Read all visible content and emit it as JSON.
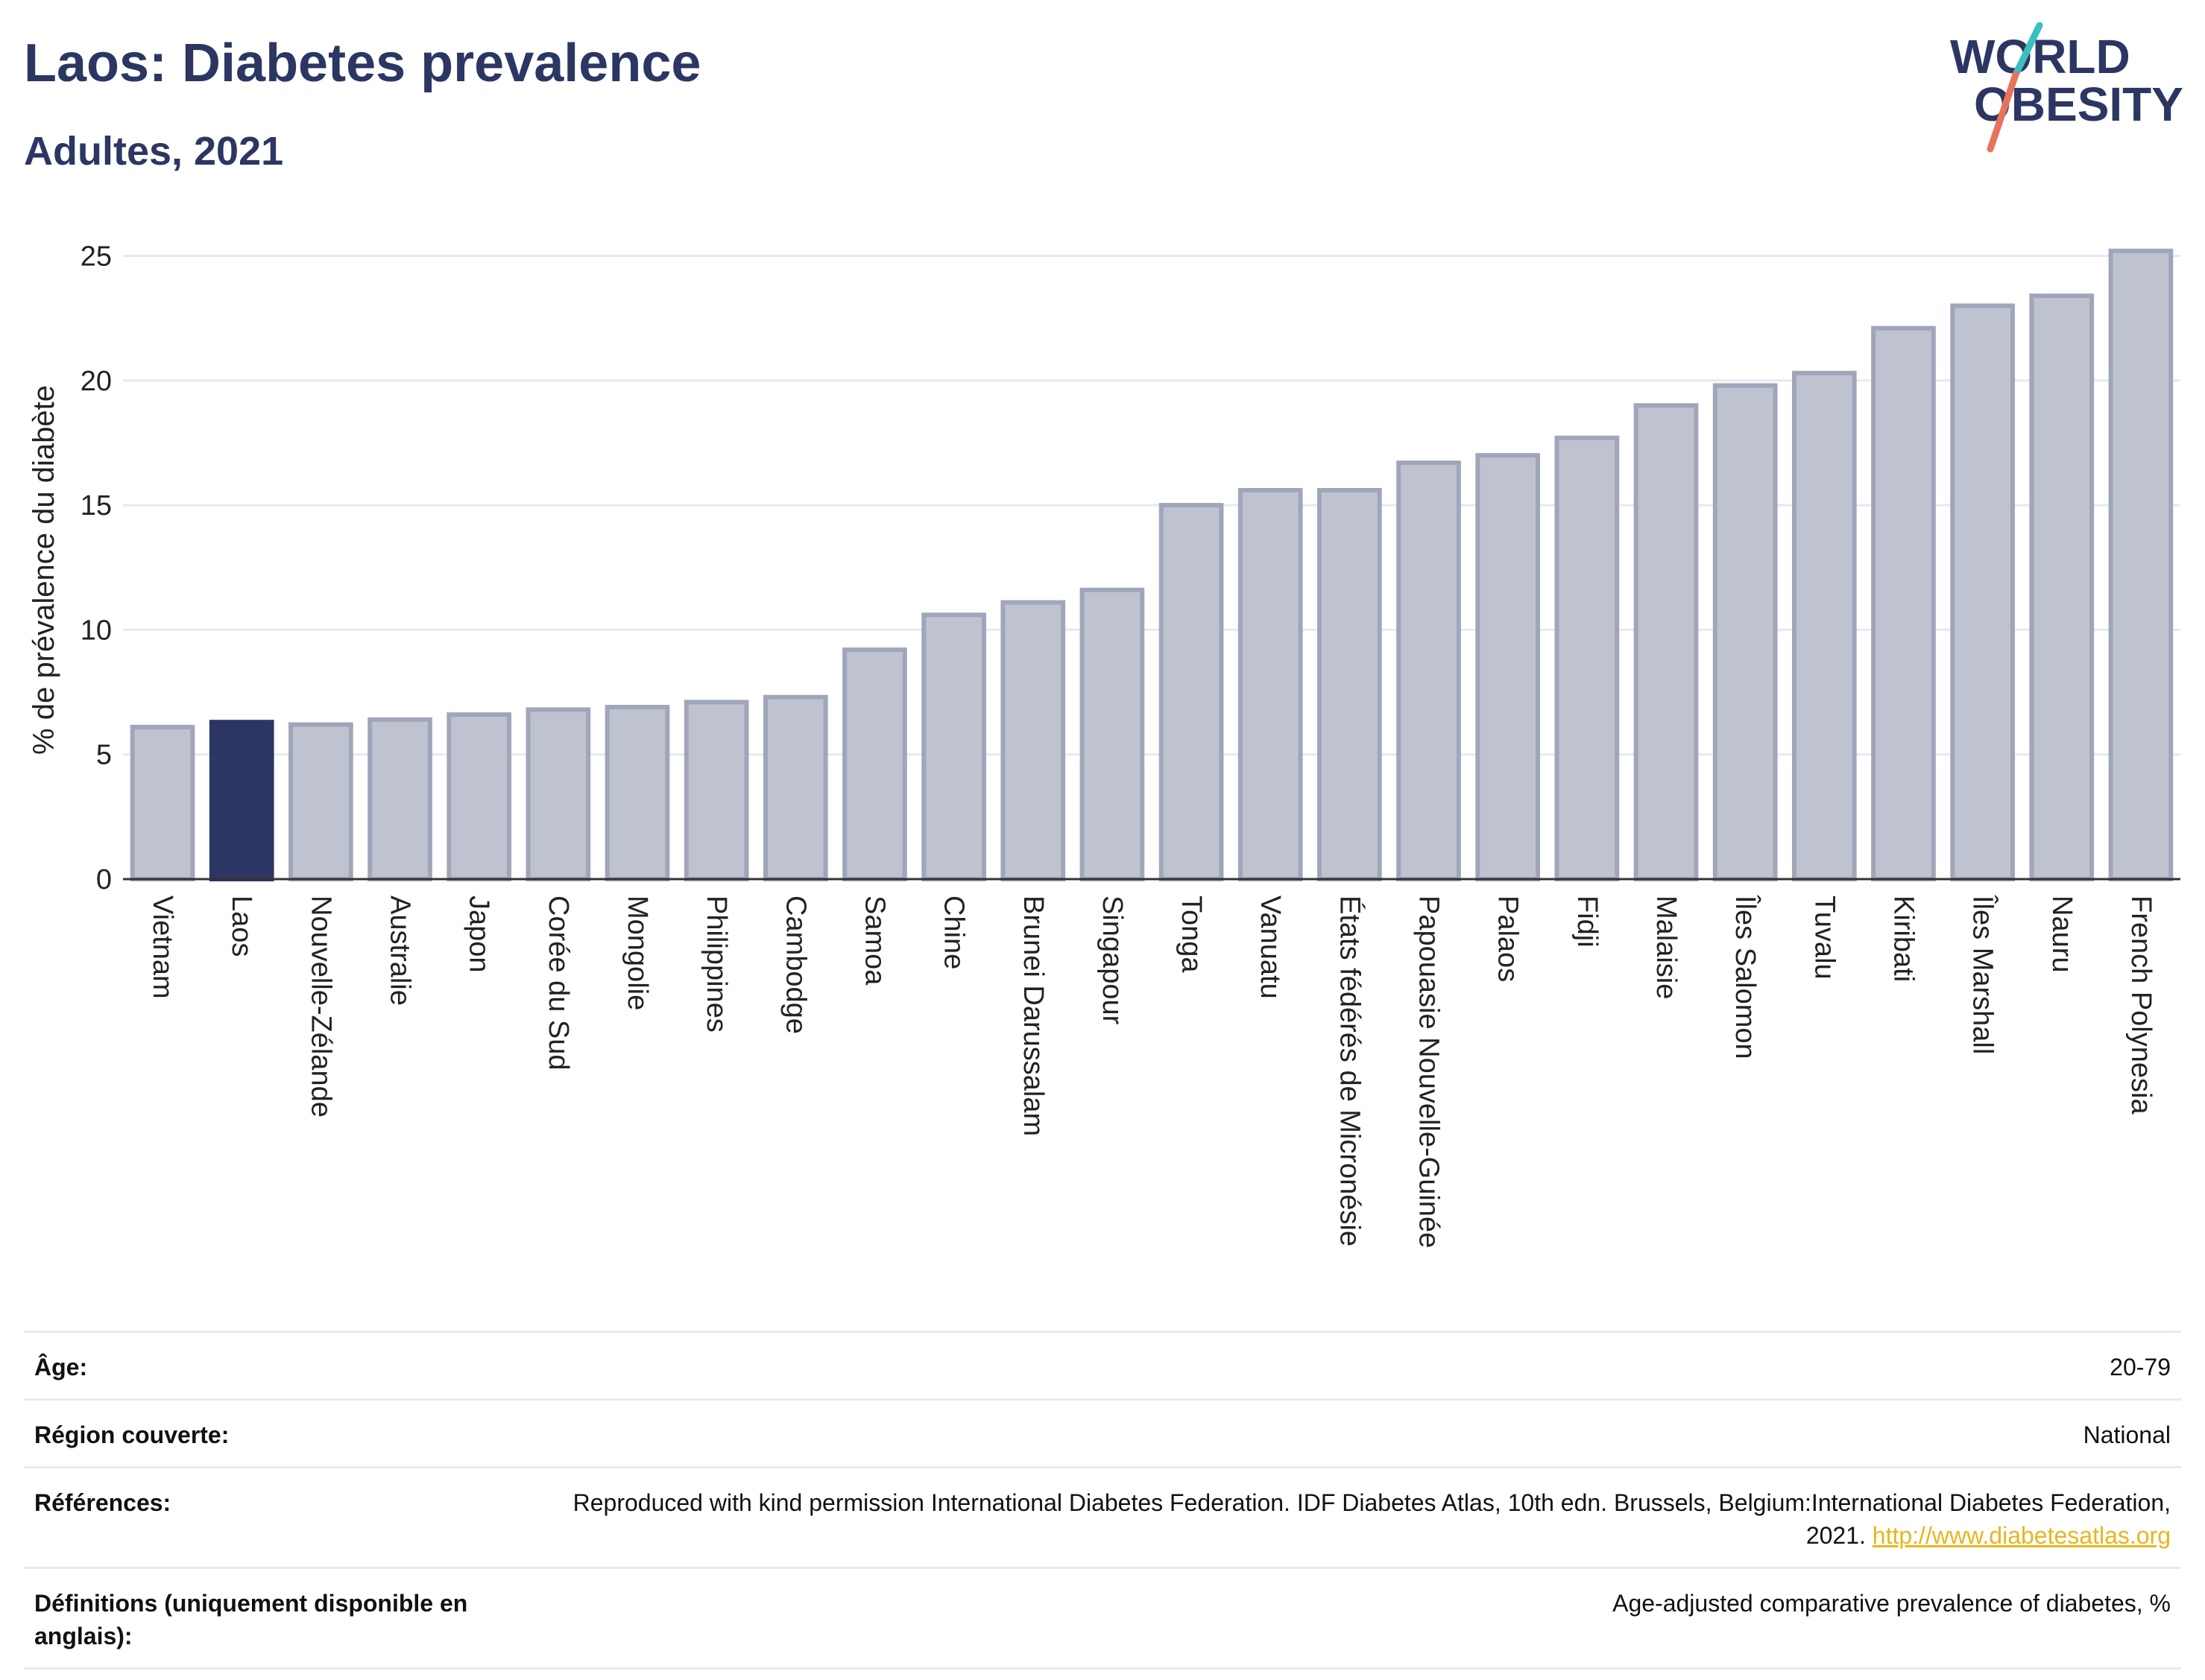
{
  "title": "Laos: Diabetes prevalence",
  "subtitle": "Adultes, 2021",
  "logo": {
    "line1": "WORLD",
    "line2": "OBESITY"
  },
  "colors": {
    "highlight": "#2c3663",
    "bar": "#bfc3d0",
    "bar_stroke": "#a0a6ba",
    "grid": "#e6e9ef",
    "text": "#2c3663",
    "link": "#e9b51e",
    "logo_teal": "#3bbfbf",
    "logo_coral": "#e8735c"
  },
  "chart_data": {
    "type": "bar",
    "ylabel": "% de prévalence du diabète",
    "ylim": [
      0,
      26
    ],
    "yticks": [
      0,
      5,
      10,
      15,
      20,
      25
    ],
    "grid": true,
    "highlight": "Laos",
    "categories": [
      "Vietnam",
      "Laos",
      "Nouvelle-Zélande",
      "Australie",
      "Japon",
      "Corée du Sud",
      "Mongolie",
      "Philippines",
      "Cambodge",
      "Samoa",
      "Chine",
      "Brunei Darussalam",
      "Singapour",
      "Tonga",
      "Vanuatu",
      "États fédérés de Micronésie",
      "Papouasie Nouvelle-Guinée",
      "Palaos",
      "Fidji",
      "Malaisie",
      "Îles Salomon",
      "Tuvalu",
      "Kiribati",
      "Îles Marshall",
      "Nauru",
      "French Polynesia"
    ],
    "values": [
      6.1,
      6.3,
      6.2,
      6.4,
      6.6,
      6.8,
      6.9,
      7.1,
      7.3,
      9.2,
      10.6,
      11.1,
      11.6,
      15.0,
      15.6,
      15.6,
      16.7,
      17.0,
      17.7,
      19.0,
      19.8,
      20.3,
      22.1,
      23.0,
      23.4,
      25.2
    ]
  },
  "info": {
    "age_label": "Âge:",
    "age_value": "20-79",
    "region_label": "Région couverte:",
    "region_value": "National",
    "refs_label": "Références:",
    "refs_text": "Reproduced with kind permission International Diabetes Federation.  IDF Diabetes Atlas, 10th edn. Brussels, Belgium:International Diabetes Federation, 2021. ",
    "refs_link": "http://www.diabetesatlas.org",
    "defs_label": "Définitions (uniquement disponible en anglais):",
    "defs_value": "Age-adjusted comparative prevalence of diabetes, %"
  }
}
